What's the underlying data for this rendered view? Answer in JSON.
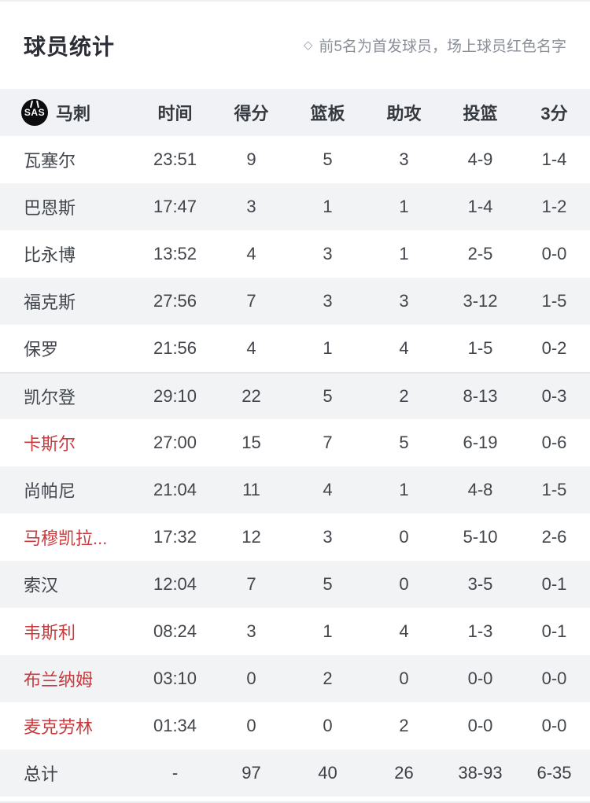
{
  "page": {
    "title": "球员统计",
    "note_marker": "◇",
    "note": "前5名为首发球员，场上球员红色名字"
  },
  "team": {
    "name": "马刺",
    "logo_text": "SAS"
  },
  "table": {
    "columns": [
      "时间",
      "得分",
      "篮板",
      "助攻",
      "投篮",
      "3分"
    ],
    "rows": [
      {
        "name": "瓦塞尔",
        "time": "23:51",
        "pts": "9",
        "reb": "5",
        "ast": "3",
        "fg": "4-9",
        "tp": "1-4",
        "red": false,
        "starter": true
      },
      {
        "name": "巴恩斯",
        "time": "17:47",
        "pts": "3",
        "reb": "1",
        "ast": "1",
        "fg": "1-4",
        "tp": "1-2",
        "red": false,
        "starter": true
      },
      {
        "name": "比永博",
        "time": "13:52",
        "pts": "4",
        "reb": "3",
        "ast": "1",
        "fg": "2-5",
        "tp": "0-0",
        "red": false,
        "starter": true
      },
      {
        "name": "福克斯",
        "time": "27:56",
        "pts": "7",
        "reb": "3",
        "ast": "3",
        "fg": "3-12",
        "tp": "1-5",
        "red": false,
        "starter": true
      },
      {
        "name": "保罗",
        "time": "21:56",
        "pts": "4",
        "reb": "1",
        "ast": "4",
        "fg": "1-5",
        "tp": "0-2",
        "red": false,
        "starter": true
      },
      {
        "name": "凯尔登",
        "time": "29:10",
        "pts": "22",
        "reb": "5",
        "ast": "2",
        "fg": "8-13",
        "tp": "0-3",
        "red": false,
        "starter": false
      },
      {
        "name": "卡斯尔",
        "time": "27:00",
        "pts": "15",
        "reb": "7",
        "ast": "5",
        "fg": "6-19",
        "tp": "0-6",
        "red": true,
        "starter": false
      },
      {
        "name": "尚帕尼",
        "time": "21:04",
        "pts": "11",
        "reb": "4",
        "ast": "1",
        "fg": "4-8",
        "tp": "1-5",
        "red": false,
        "starter": false
      },
      {
        "name": "马穆凯拉...",
        "time": "17:32",
        "pts": "12",
        "reb": "3",
        "ast": "0",
        "fg": "5-10",
        "tp": "2-6",
        "red": true,
        "starter": false
      },
      {
        "name": "索汉",
        "time": "12:04",
        "pts": "7",
        "reb": "5",
        "ast": "0",
        "fg": "3-5",
        "tp": "0-1",
        "red": false,
        "starter": false
      },
      {
        "name": "韦斯利",
        "time": "08:24",
        "pts": "3",
        "reb": "1",
        "ast": "4",
        "fg": "1-3",
        "tp": "0-1",
        "red": true,
        "starter": false
      },
      {
        "name": "布兰纳姆",
        "time": "03:10",
        "pts": "0",
        "reb": "2",
        "ast": "0",
        "fg": "0-0",
        "tp": "0-0",
        "red": true,
        "starter": false
      },
      {
        "name": "麦克劳林",
        "time": "01:34",
        "pts": "0",
        "reb": "0",
        "ast": "2",
        "fg": "0-0",
        "tp": "0-0",
        "red": true,
        "starter": false
      }
    ],
    "total": {
      "name": "总计",
      "time": "-",
      "pts": "97",
      "reb": "40",
      "ast": "26",
      "fg": "38-93",
      "tp": "6-35"
    }
  },
  "colors": {
    "red_name": "#c93a3e",
    "stripe_bg": "#f2f3f5",
    "header_bg": "#f1f2f5",
    "text_dark": "#41454c",
    "note_gray": "#8a8f9a"
  }
}
